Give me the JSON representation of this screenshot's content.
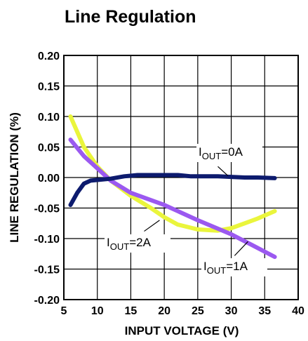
{
  "chart_data": {
    "type": "line",
    "title": "Line Regulation",
    "xlabel": "INPUT VOLTAGE (V)",
    "ylabel": "LINE REGULATION  (%)",
    "xlim": [
      5,
      40
    ],
    "ylim": [
      -0.2,
      0.2
    ],
    "x_ticks": [
      "5",
      "10",
      "15",
      "20",
      "25",
      "30",
      "35",
      "40"
    ],
    "y_ticks": [
      "0.20",
      "0.15",
      "0.10",
      "0.05",
      "0.00",
      "-0.05",
      "-0.10",
      "-0.15",
      "-0.20"
    ],
    "grid": true,
    "series": [
      {
        "name": "IOUT=0A",
        "label_main": "I",
        "label_sub": "OUT",
        "label_rest": "=0A",
        "color": "#0d1b6e",
        "x": [
          6,
          7,
          8,
          9,
          10,
          12,
          14,
          16,
          18,
          20,
          22,
          24,
          26,
          28,
          30,
          32,
          34,
          36.5
        ],
        "y": [
          -0.045,
          -0.025,
          -0.01,
          -0.005,
          -0.004,
          -0.002,
          0.002,
          0.004,
          0.004,
          0.004,
          0.004,
          0.002,
          0.002,
          0.002,
          0.001,
          0.0,
          0.0,
          -0.001
        ]
      },
      {
        "name": "IOUT=1A",
        "label_main": "I",
        "label_sub": "OUT",
        "label_rest": "=1A",
        "color": "#9b59f0",
        "x": [
          6,
          8,
          10,
          12,
          15,
          20,
          25,
          30,
          33,
          36.5
        ],
        "y": [
          0.062,
          0.035,
          0.015,
          -0.005,
          -0.025,
          -0.045,
          -0.07,
          -0.093,
          -0.11,
          -0.13
        ]
      },
      {
        "name": "IOUT=2A",
        "label_main": "I",
        "label_sub": "OUT",
        "label_rest": "=2A",
        "color": "#eaf53c",
        "x": [
          6,
          8,
          10,
          12,
          15,
          18,
          20,
          22,
          25,
          28,
          30,
          32,
          34,
          36.5
        ],
        "y": [
          0.1,
          0.05,
          0.018,
          -0.005,
          -0.03,
          -0.05,
          -0.065,
          -0.077,
          -0.085,
          -0.087,
          -0.083,
          -0.075,
          -0.067,
          -0.055
        ]
      }
    ]
  }
}
